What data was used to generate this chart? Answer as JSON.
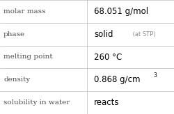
{
  "rows": [
    {
      "label": "molar mass",
      "value": "68.051 g/mol",
      "value_suffix": null,
      "value_sup": null
    },
    {
      "label": "phase",
      "value": "solid",
      "value_suffix": " (at STP)",
      "value_sup": null
    },
    {
      "label": "melting point",
      "value": "260 °C",
      "value_suffix": null,
      "value_sup": null
    },
    {
      "label": "density",
      "value": "0.868 g/cm",
      "value_suffix": null,
      "value_sup": "3"
    },
    {
      "label": "solubility in water",
      "value": "reacts",
      "value_suffix": null,
      "value_sup": null
    }
  ],
  "col_split": 0.5,
  "bg_color": "#ffffff",
  "line_color": "#bbbbbb",
  "label_color": "#505050",
  "value_color": "#000000",
  "suffix_color": "#888888",
  "label_fontsize": 7.5,
  "value_fontsize": 8.5,
  "suffix_fontsize": 6.0,
  "sup_fontsize": 5.5,
  "label_font_family": "DejaVu Serif",
  "value_font_family": "DejaVu Sans"
}
